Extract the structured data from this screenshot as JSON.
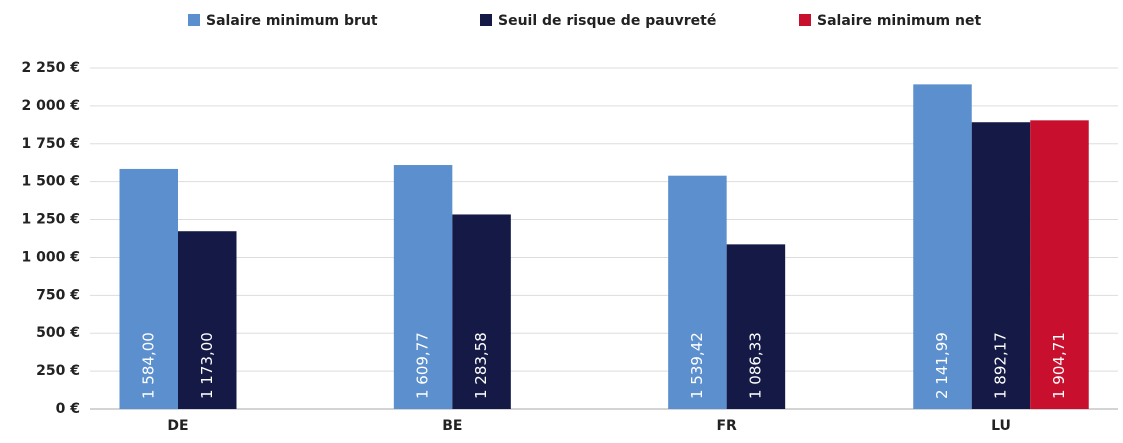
{
  "chart_data": {
    "type": "bar",
    "categories": [
      "DE",
      "BE",
      "FR",
      "LU"
    ],
    "series": [
      {
        "name": "Salaire minimum brut",
        "color": "#5b8fcd",
        "values": [
          1584.0,
          1609.77,
          1539.42,
          2141.99
        ],
        "value_labels": [
          "1 584,00",
          "1 609,77",
          "1 539,42",
          "2 141,99"
        ]
      },
      {
        "name": "Seuil de risque de pauvreté",
        "color": "#141a45",
        "values": [
          1173.0,
          1283.58,
          1086.33,
          1892.17
        ],
        "value_labels": [
          "1 173,00",
          "1 283,58",
          "1 086,33",
          "1 892,17"
        ]
      },
      {
        "name": "Salaire minimum net",
        "color": "#c8102e",
        "values": [
          null,
          null,
          null,
          1904.71
        ],
        "value_labels": [
          null,
          null,
          null,
          "1 904,71"
        ]
      }
    ],
    "ylim": [
      0,
      2250
    ],
    "yticks": [
      {
        "value": 0,
        "label": "0 €"
      },
      {
        "value": 250,
        "label": "250 €"
      },
      {
        "value": 500,
        "label": "500 €"
      },
      {
        "value": 750,
        "label": "750 €"
      },
      {
        "value": 1000,
        "label": "1 000 €"
      },
      {
        "value": 1250,
        "label": "1 250 €"
      },
      {
        "value": 1500,
        "label": "1 500 €"
      },
      {
        "value": 1750,
        "label": "1 750 €"
      },
      {
        "value": 2000,
        "label": "2 000 €"
      },
      {
        "value": 2250,
        "label": "2 250 €"
      }
    ],
    "grid": true,
    "legend": "top"
  }
}
